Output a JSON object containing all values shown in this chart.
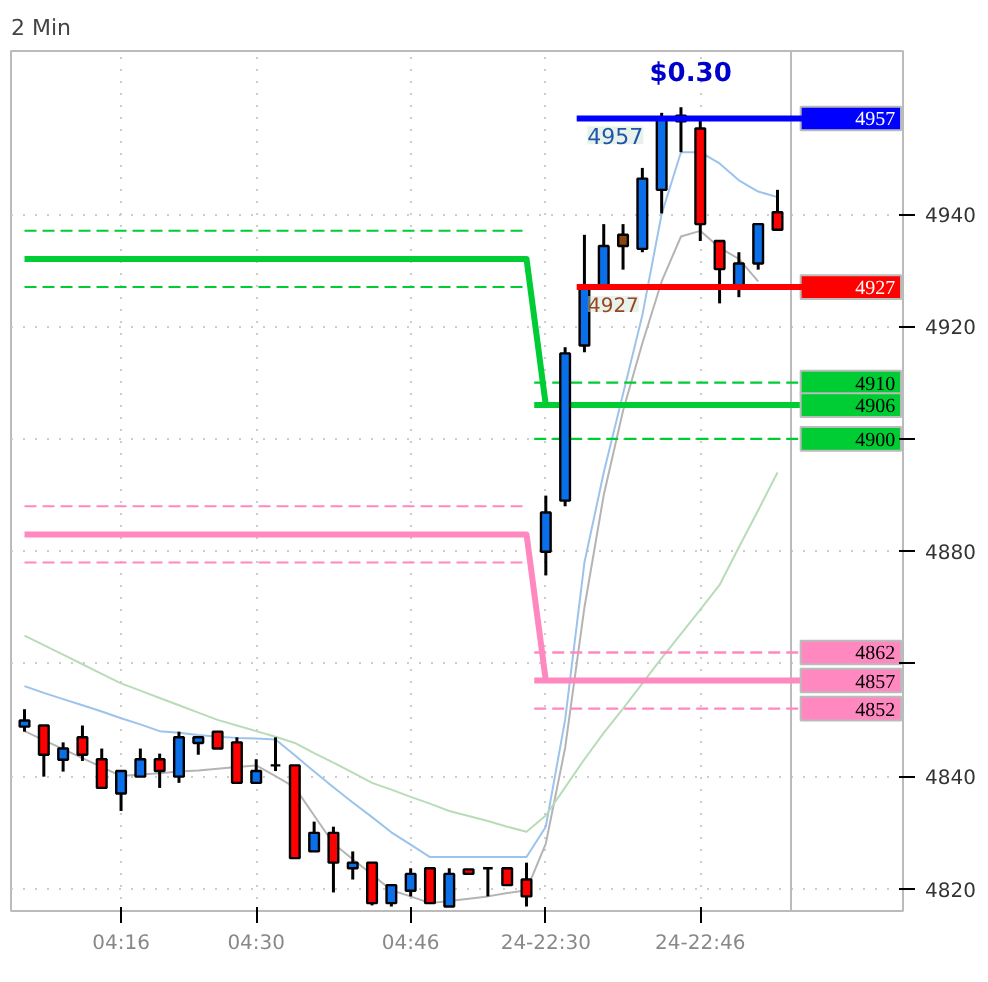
{
  "chart_data": {
    "type": "candlestick",
    "title": "2 Min",
    "categories": [
      null,
      null,
      null,
      null,
      null,
      "04:16",
      null,
      null,
      null,
      null,
      null,
      null,
      "04:30",
      null,
      null,
      null,
      null,
      null,
      null,
      null,
      "04:46",
      null,
      null,
      null,
      null,
      null,
      null,
      "24-22:30",
      null,
      null,
      null,
      null,
      null,
      null,
      null,
      "24-22:46",
      null,
      null,
      null,
      null
    ],
    "ohlc": [
      [
        4848.8,
        4851.9,
        4847.9,
        4849.9
      ],
      [
        4849,
        4849,
        4839.9,
        4843.8
      ],
      [
        4842.9,
        4846,
        4840.8,
        4844.9
      ],
      [
        4846.9,
        4849,
        4842.7,
        4843.8
      ],
      [
        4843,
        4844.9,
        4837.9,
        4837.9
      ],
      [
        4836.9,
        4840.9,
        4833.8,
        4840.9
      ],
      [
        4839.9,
        4844.9,
        4839.9,
        4843
      ],
      [
        4843,
        4844,
        4837.9,
        4840.9
      ],
      [
        4839.9,
        4847.9,
        4838.8,
        4846.9
      ],
      [
        4845.9,
        4846.9,
        4843.8,
        4846.9
      ],
      [
        4847.9,
        4847.9,
        4844.9,
        4844.9
      ],
      [
        4846,
        4846.9,
        4838.8,
        4838.8
      ],
      [
        4838.8,
        4843,
        4838.8,
        4840.9
      ],
      [
        4841.9,
        4846.9,
        4840.9,
        4841.9
      ],
      [
        4841.9,
        4841.9,
        4825.4,
        4825.4
      ],
      [
        4826.6,
        4831.9,
        4826.6,
        4829.9
      ],
      [
        4829.9,
        4831,
        4819.3,
        4824.6
      ],
      [
        4823.6,
        4826.6,
        4821.6,
        4824.6
      ],
      [
        4824.6,
        4824.6,
        4817,
        4817.4
      ],
      [
        4817.4,
        4820.6,
        4816.8,
        4820.6
      ],
      [
        4819.6,
        4823.6,
        4818.6,
        4822.6
      ],
      [
        4823.6,
        4823.6,
        4817.4,
        4817.4
      ],
      [
        4816.8,
        4823.6,
        4816.8,
        4822.6
      ],
      [
        4823.4,
        4823.4,
        4822.6,
        4822.6
      ],
      [
        4823.6,
        4823.6,
        4818.6,
        4823.6
      ],
      [
        4823.6,
        4823.6,
        4820.6,
        4820.6
      ],
      [
        4821.6,
        4824.6,
        4816.8,
        4818.6
      ],
      [
        4879.9,
        4889.9,
        4875.7,
        4886.9
      ],
      [
        4889,
        4916.3,
        4888,
        4915.2
      ],
      [
        4916.6,
        4936.3,
        4915.4,
        4927.1
      ],
      [
        4927.1,
        4938.2,
        4927.1,
        4934.3
      ],
      [
        4934.3,
        4938.2,
        4930.1,
        4936.3
      ],
      [
        4933.8,
        4948.2,
        4933.2,
        4946.3
      ],
      [
        4944.3,
        4958,
        4940.1,
        4957
      ],
      [
        4957.5,
        4959,
        4951,
        4956.5
      ],
      [
        4955.2,
        4956.6,
        4935.2,
        4938.2
      ],
      [
        4935.2,
        4935.2,
        4924.1,
        4930.2
      ],
      [
        4927.1,
        4933.2,
        4925.2,
        4931.2
      ],
      [
        4931.2,
        4938.2,
        4930.1,
        4938.2
      ],
      [
        4940.3,
        4944.3,
        4937.2,
        4937.2
      ]
    ],
    "colors": [
      "#0a6fe8",
      "#ff0000",
      "#0a6fe8",
      "#ff0000",
      "#ff0000",
      "#0a6fe8",
      "#0a6fe8",
      "#ff0000",
      "#0a6fe8",
      "#0a6fe8",
      "#ff0000",
      "#ff0000",
      "#0a6fe8",
      "#000000",
      "#ff0000",
      "#0a6fe8",
      "#ff0000",
      "#0a6fe8",
      "#ff0000",
      "#0a6fe8",
      "#0a6fe8",
      "#ff0000",
      "#0a6fe8",
      "#ff0000",
      "#000000",
      "#ff0000",
      "#ff0000",
      "#0a6fe8",
      "#0a6fe8",
      "#0a6fe8",
      "#0a6fe8",
      "#8b4513",
      "#0a6fe8",
      "#0a6fe8",
      "#ff0000",
      "#ff0000",
      "#ff0000",
      "#0a6fe8",
      "#0a6fe8",
      "#ff0000"
    ],
    "series": [
      {
        "type": "line",
        "color": "#9cc3ec",
        "line_style": "solid",
        "values": [
          4856,
          4854.8,
          4853.7,
          4852.6,
          4851.5,
          4850.3,
          4849.2,
          4848,
          4847.7,
          4847.3,
          4847,
          4846.8,
          4846.7,
          4846.5,
          4843.7,
          4840.8,
          4838,
          4835.3,
          4832.7,
          4830,
          4827.8,
          4825.6,
          4825.6,
          4825.6,
          4825.6,
          4825.6,
          4825.6,
          4831,
          4850,
          4878,
          4894,
          4908,
          4922,
          4940,
          4951,
          4951,
          4949,
          4946,
          4944,
          4943
        ]
      },
      {
        "type": "line",
        "color": "#b4b4b4",
        "line_style": "solid",
        "values": [
          4848,
          4846.4,
          4844.8,
          4843.2,
          4841.6,
          4840,
          4840.3,
          4840.5,
          4840.8,
          4841,
          4841.3,
          4841.6,
          4841.9,
          4840,
          4838,
          4833,
          4828,
          4825.2,
          4822.5,
          4819.7,
          4818.6,
          4817.4,
          4817.8,
          4818.2,
          4818.6,
          4819.2,
          4819.7,
          4828,
          4845,
          4870,
          4890,
          4905,
          4917,
          4928,
          4936,
          4937,
          4934,
          4932,
          4928,
          null
        ]
      },
      {
        "type": "line",
        "color": "#b8dcb8",
        "line_style": "solid",
        "values": [
          4865,
          4863.3,
          4861.6,
          4859.9,
          4858.2,
          4856.5,
          4855.2,
          4853.9,
          4852.6,
          4851.3,
          4850,
          4849,
          4848,
          4847,
          4845.9,
          4844.1,
          4842.4,
          4840.6,
          4838.8,
          4837.6,
          4836.3,
          4835.1,
          4833.8,
          4832.9,
          4832,
          4831,
          4830.1,
          4833,
          4838,
          4843,
          4847.7,
          4852,
          4856.5,
          4861,
          4865.3,
          4869.6,
          4874,
          4880.7,
          4887.3,
          4894
        ]
      },
      {
        "type": "line",
        "color": "#00cc33",
        "line_style": "solid",
        "values": [
          4932,
          4932,
          4932,
          4932,
          4932,
          4932,
          4932,
          4932,
          4932,
          4932,
          4932,
          4932,
          4932,
          4932,
          4932,
          4932,
          4932,
          4932,
          4932,
          4932,
          4932,
          4932,
          4932,
          4932,
          4932,
          4932,
          4932,
          4906,
          null,
          null,
          null,
          null,
          null,
          null,
          null,
          null,
          null,
          null,
          null,
          null
        ]
      },
      {
        "type": "line",
        "color": "#00cc33",
        "line_style": "dashed",
        "values": [
          4937,
          4937,
          4937,
          4937,
          4937,
          4937,
          4937,
          4937,
          4937,
          4937,
          4937,
          4937,
          4937,
          4937,
          4937,
          4937,
          4937,
          4937,
          4937,
          4937,
          4937,
          4937,
          4937,
          4937,
          4937,
          4937,
          4937,
          null,
          null,
          null,
          null,
          null,
          null,
          null,
          null,
          null,
          null,
          null,
          null,
          null
        ]
      },
      {
        "type": "line",
        "color": "#00cc33",
        "line_style": "dashed",
        "values": [
          4927,
          4927,
          4927,
          4927,
          4927,
          4927,
          4927,
          4927,
          4927,
          4927,
          4927,
          4927,
          4927,
          4927,
          4927,
          4927,
          4927,
          4927,
          4927,
          4927,
          4927,
          4927,
          4927,
          4927,
          4927,
          4927,
          4927,
          null,
          null,
          null,
          null,
          null,
          null,
          null,
          null,
          null,
          null,
          null,
          null,
          null
        ]
      },
      {
        "type": "line",
        "color": "#ff88c0",
        "line_style": "solid",
        "values": [
          4883,
          4883,
          4883,
          4883,
          4883,
          4883,
          4883,
          4883,
          4883,
          4883,
          4883,
          4883,
          4883,
          4883,
          4883,
          4883,
          4883,
          4883,
          4883,
          4883,
          4883,
          4883,
          4883,
          4883,
          4883,
          4883,
          4883,
          4857,
          null,
          null,
          null,
          null,
          null,
          null,
          null,
          null,
          null,
          null,
          null,
          null
        ]
      },
      {
        "type": "line",
        "color": "#ff88c0",
        "line_style": "dashed",
        "values": [
          4888,
          4888,
          4888,
          4888,
          4888,
          4888,
          4888,
          4888,
          4888,
          4888,
          4888,
          4888,
          4888,
          4888,
          4888,
          4888,
          4888,
          4888,
          4888,
          4888,
          4888,
          4888,
          4888,
          4888,
          4888,
          4888,
          4888,
          null,
          null,
          null,
          null,
          null,
          null,
          null,
          null,
          null,
          null,
          null,
          null,
          null
        ]
      },
      {
        "type": "line",
        "color": "#ff88c0",
        "line_style": "dashed",
        "values": [
          4878,
          4878,
          4878,
          4878,
          4878,
          4878,
          4878,
          4878,
          4878,
          4878,
          4878,
          4878,
          4878,
          4878,
          4878,
          4878,
          4878,
          4878,
          4878,
          4878,
          4878,
          4878,
          4878,
          4878,
          4878,
          4878,
          4878,
          null,
          null,
          null,
          null,
          null,
          null,
          null,
          null,
          null,
          null,
          null,
          null,
          null
        ]
      }
    ],
    "ref_lines": [
      {
        "axis": "y",
        "value": 4957,
        "label": "4957",
        "color": "#0000ff",
        "line_style": "solid"
      },
      {
        "axis": "y",
        "value": 4927,
        "label": "4927",
        "color": "#ff0000",
        "line_style": "solid"
      },
      {
        "axis": "y",
        "value": 4910,
        "label": "4910",
        "color": "#00cc33",
        "line_style": "dashed"
      },
      {
        "axis": "y",
        "value": 4906,
        "label": "4906",
        "color": "#00cc33",
        "line_style": "solid"
      },
      {
        "axis": "y",
        "value": 4900,
        "label": "4900",
        "color": "#00cc33",
        "line_style": "dashed"
      },
      {
        "axis": "y",
        "value": 4862,
        "label": "4862",
        "color": "#ff88c0",
        "line_style": "dashed"
      },
      {
        "axis": "y",
        "value": 4857,
        "label": "4857",
        "color": "#ff88c0",
        "line_style": "solid"
      },
      {
        "axis": "y",
        "value": 4852,
        "label": "4852",
        "color": "#ff88c0",
        "line_style": "dashed"
      }
    ],
    "annotations": [
      "$0.30",
      {
        "text": "4957",
        "y": 4954
      },
      {
        "text": "4927",
        "y": 4924
      }
    ],
    "ylim": [
      4816,
      4969
    ],
    "yticks": [
      4820,
      4840,
      {
        "value": 4860,
        "label": null
      },
      4880,
      {
        "value": 4900,
        "label": null
      },
      4920,
      4940
    ],
    "grid": true
  }
}
